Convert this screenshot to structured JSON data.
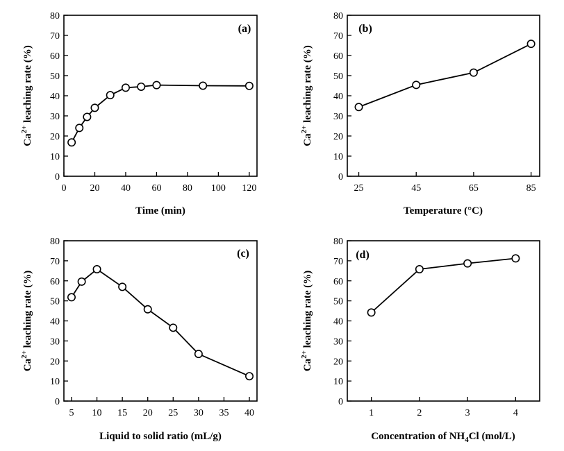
{
  "chart_data": [
    {
      "panel": "(a)",
      "type": "line",
      "xlabel": "Time (min)",
      "ylabel": "Ca2+ leaching rate (%)",
      "xlim": [
        0,
        125
      ],
      "ylim": [
        0,
        80
      ],
      "xticks": [
        0,
        20,
        40,
        60,
        80,
        100,
        120
      ],
      "yticks": [
        0,
        10,
        20,
        30,
        40,
        50,
        60,
        70,
        80
      ],
      "x": [
        5,
        10,
        15,
        20,
        30,
        40,
        50,
        60,
        90,
        120
      ],
      "y": [
        16.8,
        24.0,
        29.5,
        34.0,
        40.3,
        44.0,
        44.5,
        45.3,
        45.0,
        44.9
      ]
    },
    {
      "panel": "(b)",
      "type": "line",
      "xlabel": "Temperature (°C)",
      "ylabel": "Ca2+ leaching rate (%)",
      "xlim": [
        21,
        88
      ],
      "ylim": [
        0,
        80
      ],
      "xticks": [
        25,
        45,
        65,
        85
      ],
      "yticks": [
        0,
        10,
        20,
        30,
        40,
        50,
        60,
        70,
        80
      ],
      "x": [
        25,
        45,
        65,
        85
      ],
      "y": [
        34.4,
        45.4,
        51.5,
        65.8
      ]
    },
    {
      "panel": "(c)",
      "type": "line",
      "xlabel": "Liquid to solid ratio (mL/g)",
      "ylabel": "Ca2+ leaching rate (%)",
      "xlim": [
        3.5,
        41.5
      ],
      "ylim": [
        0,
        80
      ],
      "xticks": [
        5,
        10,
        15,
        20,
        25,
        30,
        35,
        40
      ],
      "yticks": [
        0,
        10,
        20,
        30,
        40,
        50,
        60,
        70,
        80
      ],
      "x": [
        5,
        7,
        10,
        15,
        20,
        25,
        30,
        40
      ],
      "y": [
        51.8,
        59.6,
        65.8,
        57.0,
        45.8,
        36.6,
        23.5,
        12.4
      ]
    },
    {
      "panel": "(d)",
      "type": "line",
      "xlabel": "Concentration of NH4Cl (mol/L)",
      "ylabel": "Ca2+ leaching rate (%)",
      "xlim": [
        0.5,
        4.5
      ],
      "ylim": [
        0,
        80
      ],
      "xticks": [
        1,
        2,
        3,
        4
      ],
      "yticks": [
        0,
        10,
        20,
        30,
        40,
        50,
        60,
        70,
        80
      ],
      "x": [
        1,
        2,
        3,
        4
      ],
      "y": [
        44.2,
        65.8,
        68.7,
        71.2
      ]
    }
  ]
}
